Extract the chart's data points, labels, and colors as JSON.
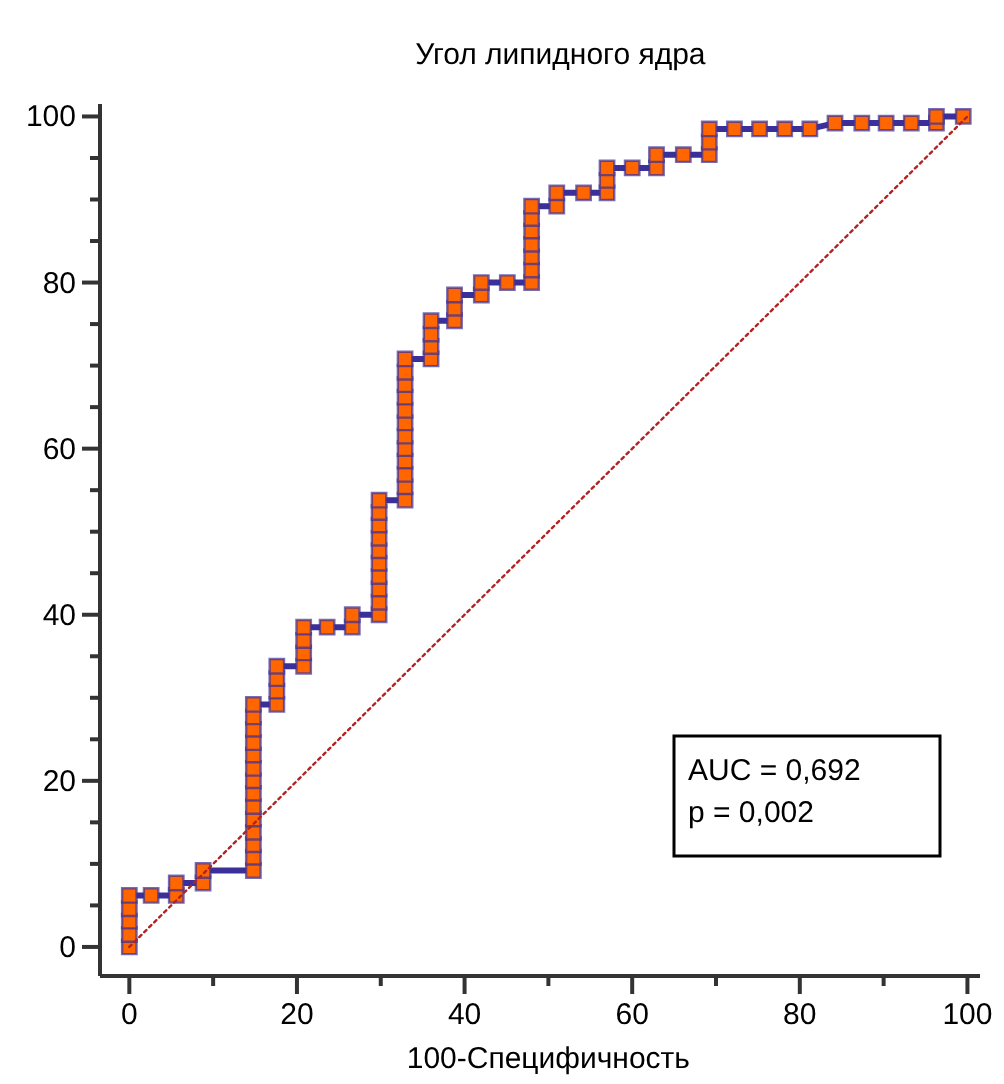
{
  "chart_data": {
    "type": "line",
    "title": "Угол липидного ядра",
    "xlabel": "100-Специфичность",
    "xlim": [
      -3.5,
      101.5
    ],
    "ylim": [
      -3.5,
      101.5
    ],
    "xticks": [
      0,
      {
        "value": 10,
        "label": null
      },
      20,
      {
        "value": 30,
        "label": null
      },
      40,
      {
        "value": 50,
        "label": null
      },
      60,
      {
        "value": 70,
        "label": null
      },
      80,
      {
        "value": 90,
        "label": null
      },
      100
    ],
    "yticks": [
      0,
      {
        "value": 5,
        "label": null
      },
      {
        "value": 10,
        "label": null
      },
      {
        "value": 15,
        "label": null
      },
      20,
      {
        "value": 25,
        "label": null
      },
      {
        "value": 30,
        "label": null
      },
      {
        "value": 35,
        "label": null
      },
      40,
      {
        "value": 45,
        "label": null
      },
      {
        "value": 50,
        "label": null
      },
      {
        "value": 55,
        "label": null
      },
      60,
      {
        "value": 65,
        "label": null
      },
      {
        "value": 70,
        "label": null
      },
      {
        "value": 75,
        "label": null
      },
      80,
      {
        "value": 85,
        "label": null
      },
      {
        "value": 90,
        "label": null
      },
      {
        "value": 95,
        "label": null
      },
      100
    ],
    "grid": false,
    "series": [
      {
        "color": "#3b2f9a",
        "marker": "square",
        "line_style": "solid",
        "x": [
          0,
          0,
          0,
          0,
          0,
          2.6,
          5.6,
          5.6,
          8.8,
          8.8,
          14.8,
          14.8,
          14.8,
          14.8,
          14.8,
          14.8,
          14.8,
          14.8,
          14.8,
          14.8,
          14.8,
          14.8,
          14.8,
          14.8,
          17.6,
          17.6,
          17.6,
          17.6,
          20.8,
          20.8,
          20.8,
          20.8,
          23.6,
          26.6,
          26.6,
          29.8,
          29.8,
          29.8,
          29.8,
          29.8,
          29.8,
          29.8,
          29.8,
          29.8,
          29.8,
          32.9,
          32.9,
          32.9,
          32.9,
          32.9,
          32.9,
          32.9,
          32.9,
          32.9,
          32.9,
          32.9,
          32.9,
          36,
          36,
          36,
          36,
          38.8,
          38.8,
          38.8,
          42,
          42,
          45.1,
          48,
          48,
          48,
          48,
          48,
          48,
          48,
          51,
          51,
          54.2,
          57,
          57,
          57,
          60,
          62.9,
          62.9,
          66.1,
          69.2,
          69.2,
          69.2,
          72.2,
          75.2,
          78.2,
          81.2,
          84.2,
          87.4,
          90.3,
          93.3,
          96.3,
          96.3,
          99.5
        ],
        "values": [
          0,
          1.5,
          3.1,
          4.6,
          6.2,
          6.2,
          6.2,
          7.7,
          7.7,
          9.2,
          9.2,
          10.8,
          12.3,
          13.8,
          15.4,
          16.9,
          18.5,
          20,
          21.5,
          23.1,
          24.6,
          26.2,
          27.7,
          29.2,
          29.2,
          30.8,
          32.3,
          33.8,
          33.8,
          35.4,
          36.9,
          38.5,
          38.5,
          38.5,
          40,
          40,
          41.5,
          43.1,
          44.6,
          46.2,
          47.7,
          49.2,
          50.8,
          52.3,
          53.8,
          53.8,
          55.4,
          56.9,
          58.5,
          60,
          61.5,
          63.1,
          64.6,
          66.2,
          67.7,
          69.2,
          70.8,
          70.8,
          72.3,
          73.8,
          75.4,
          75.4,
          76.9,
          78.5,
          78.5,
          80,
          80,
          80,
          81.5,
          83.1,
          84.6,
          86.2,
          87.7,
          89.2,
          89.2,
          90.8,
          90.8,
          90.8,
          92.3,
          93.8,
          93.8,
          93.8,
          95.4,
          95.4,
          95.4,
          96.9,
          98.5,
          98.5,
          98.5,
          98.5,
          98.5,
          99.2,
          99.2,
          99.2,
          99.2,
          99.2,
          100,
          100
        ]
      },
      {
        "color": "#b22222",
        "line_style": "dotted",
        "x": [
          0,
          100
        ],
        "values": [
          0,
          100
        ]
      }
    ],
    "annotations": [
      "AUC = 0,692",
      "p = 0,002"
    ]
  }
}
